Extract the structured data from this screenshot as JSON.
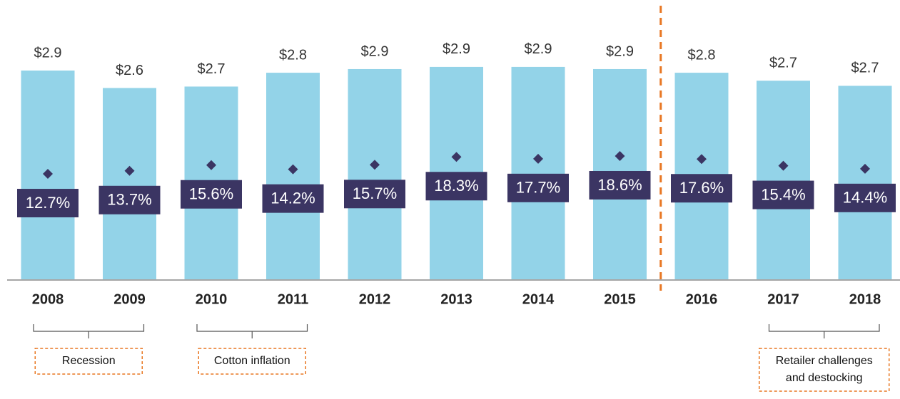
{
  "chart_data": {
    "type": "bar",
    "categories": [
      "2008",
      "2009",
      "2010",
      "2011",
      "2012",
      "2013",
      "2014",
      "2015",
      "2016",
      "2017",
      "2018"
    ],
    "series": [
      {
        "type": "bar",
        "color": "#93d3e8",
        "values": [
          2.88,
          2.64,
          2.66,
          2.85,
          2.9,
          2.93,
          2.93,
          2.9,
          2.85,
          2.74,
          2.67
        ],
        "value_labels": [
          "$2.9",
          "$2.6",
          "$2.7",
          "$2.8",
          "$2.9",
          "$2.9",
          "$2.9",
          "$2.9",
          "$2.8",
          "$2.7",
          "$2.7"
        ]
      },
      {
        "type": "scatter",
        "axis": "y2",
        "color": "#3b3563",
        "values": [
          12.7,
          13.7,
          15.6,
          14.2,
          15.7,
          18.3,
          17.7,
          18.6,
          17.6,
          15.4,
          14.4
        ],
        "value_labels": [
          "12.7%",
          "13.7%",
          "15.6%",
          "14.2%",
          "15.7%",
          "18.3%",
          "17.7%",
          "18.6%",
          "17.6%",
          "15.4%",
          "14.4%"
        ]
      }
    ],
    "ylim": [
      0,
      3.85
    ],
    "y2lim": [
      -22.4,
      70.2
    ],
    "annotations": [
      {
        "lines": [
          "Recession"
        ]
      },
      {
        "lines": [
          "Cotton inflation"
        ]
      },
      {
        "lines": [
          "Retailer challenges",
          "and destocking"
        ]
      }
    ]
  }
}
